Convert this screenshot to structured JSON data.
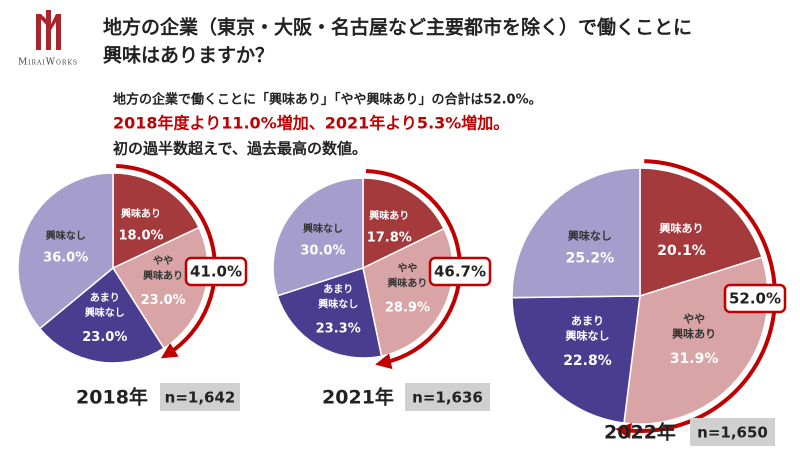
{
  "logo": "MiraiWorks",
  "title": [
    "地方の企業（東京・大阪・名古屋など主要都市を除く）で働くことに",
    "興味はありますか？"
  ],
  "summary": [
    "地方の企業で働くことに「興味あり」「やや興味あり」の合計は52.0%。",
    "2018年度より11.0%増加、2021年より5.3%増加。",
    "初の過半数超えで、過去最高の数値。"
  ],
  "chart_data": [
    {
      "type": "pie",
      "title": "2018年",
      "subtitle": "n=1,642",
      "categories": [
        "興味あり",
        "やや\n興味あり",
        "あまり\n興味なし",
        "興味なし"
      ],
      "values": [
        18.0,
        23.0,
        23.0,
        36.0
      ],
      "value_labels": [
        "18.0%",
        "23.0%",
        "23.0%",
        "36.0%"
      ],
      "colors": [
        "#a53a3c",
        "#d9a4a6",
        "#4a3c8e",
        "#a59dcb"
      ],
      "annotation": "41.0%"
    },
    {
      "type": "pie",
      "title": "2021年",
      "subtitle": "n=1,636",
      "categories": [
        "興味あり",
        "やや\n興味あり",
        "あまり\n興味なし",
        "興味なし"
      ],
      "values": [
        17.8,
        28.9,
        23.3,
        30.0
      ],
      "value_labels": [
        "17.8%",
        "28.9%",
        "23.3%",
        "30.0%"
      ],
      "colors": [
        "#a53a3c",
        "#d9a4a6",
        "#4a3c8e",
        "#a59dcb"
      ],
      "annotation": "46.7%"
    },
    {
      "type": "pie",
      "title": "2022年",
      "subtitle": "n=1,650",
      "categories": [
        "興味あり",
        "やや\n興味あり",
        "あまり\n興味なし",
        "興味なし"
      ],
      "values": [
        20.1,
        31.9,
        22.8,
        25.2
      ],
      "value_labels": [
        "20.1%",
        "31.9%",
        "22.8%",
        "25.2%"
      ],
      "colors": [
        "#a53a3c",
        "#d9a4a6",
        "#4a3c8e",
        "#a59dcb"
      ],
      "annotation": "52.0%"
    }
  ]
}
